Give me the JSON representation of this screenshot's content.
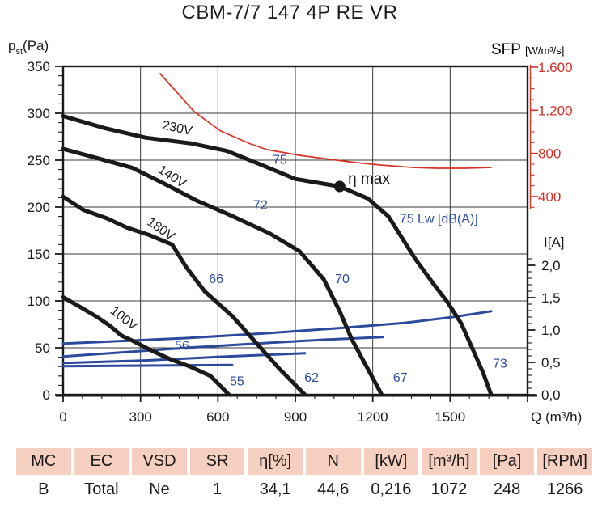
{
  "title": "CBM-7/7 147 4P RE VR",
  "axes": {
    "pressure": {
      "sym": "p",
      "sub": "st",
      "unit": "(Pa)",
      "ticks": [
        "350",
        "300",
        "250",
        "200",
        "150",
        "100",
        "50",
        "0"
      ]
    },
    "flow": {
      "label": "Q (m³/h)",
      "ticks": [
        "0",
        "300",
        "600",
        "900",
        "1200",
        "1500"
      ]
    },
    "sfp": {
      "title": "SFP",
      "unit": "[W/m³/s]",
      "ticks": [
        "1.600",
        "1.200",
        "800",
        "400"
      ]
    },
    "current": {
      "title": "I[A]",
      "ticks": [
        "2,0",
        "1,5",
        "1,0",
        "0,5",
        "0,0"
      ]
    }
  },
  "chart_data": {
    "type": "line",
    "title": "CBM-7/7 147 4P RE VR",
    "x_axis": {
      "label": "Q (m³/h)",
      "range": [
        0,
        1800
      ],
      "ticks": [
        0,
        300,
        600,
        900,
        1200,
        1500
      ],
      "minor_step": 75
    },
    "y_axis_pressure": {
      "label": "pst (Pa)",
      "range": [
        0,
        350
      ],
      "tick_step": 50,
      "minor_step": 10
    },
    "y_axis_sfp": {
      "label": "SFP [W/m³/s]",
      "ticks_shown": [
        400,
        800,
        1200,
        1600
      ],
      "minor_step": 100
    },
    "y_axis_current": {
      "label": "I [A]",
      "ticks_shown": [
        0.0,
        0.5,
        1.0,
        1.5,
        2.0
      ],
      "minor_step": 0.1
    },
    "grid": true,
    "pressure_curves": [
      {
        "name": "230V",
        "points": [
          [
            0,
            297
          ],
          [
            163,
            284
          ],
          [
            320,
            274
          ],
          [
            492,
            268
          ],
          [
            633,
            260
          ],
          [
            759,
            246
          ],
          [
            900,
            230
          ],
          [
            1072,
            222
          ],
          [
            1182,
            209
          ],
          [
            1261,
            190
          ],
          [
            1364,
            145
          ],
          [
            1433,
            119
          ],
          [
            1489,
            99
          ],
          [
            1543,
            76
          ],
          [
            1590,
            47
          ],
          [
            1627,
            24
          ],
          [
            1659,
            0
          ]
        ]
      },
      {
        "name": "140V",
        "points": [
          [
            0,
            262
          ],
          [
            147,
            251
          ],
          [
            267,
            242
          ],
          [
            392,
            225
          ],
          [
            517,
            207
          ],
          [
            643,
            192
          ],
          [
            800,
            172
          ],
          [
            916,
            153
          ],
          [
            1010,
            123
          ],
          [
            1072,
            89
          ],
          [
            1119,
            59
          ],
          [
            1176,
            30
          ],
          [
            1235,
            0
          ]
        ]
      },
      {
        "name": "180V",
        "points": [
          [
            0,
            211
          ],
          [
            78,
            197
          ],
          [
            169,
            188
          ],
          [
            248,
            178
          ],
          [
            336,
            170
          ],
          [
            423,
            160
          ],
          [
            477,
            136
          ],
          [
            549,
            110
          ],
          [
            655,
            84
          ],
          [
            743,
            57
          ],
          [
            837,
            28
          ],
          [
            937,
            0
          ]
        ]
      },
      {
        "name": "100V",
        "points": [
          [
            0,
            104
          ],
          [
            69,
            93
          ],
          [
            125,
            84
          ],
          [
            179,
            74
          ],
          [
            226,
            63
          ],
          [
            273,
            57
          ],
          [
            336,
            48
          ],
          [
            414,
            38
          ],
          [
            492,
            30
          ],
          [
            571,
            20
          ],
          [
            643,
            0
          ]
        ]
      }
    ],
    "sfp_curve": {
      "name": "SFP",
      "points": [
        [
          376,
          1540
        ],
        [
          508,
          1187
        ],
        [
          611,
          1007
        ],
        [
          727,
          887
        ],
        [
          790,
          835
        ],
        [
          916,
          782
        ],
        [
          1010,
          752
        ],
        [
          1135,
          715
        ],
        [
          1229,
          692
        ],
        [
          1354,
          670
        ],
        [
          1448,
          662
        ],
        [
          1558,
          662
        ],
        [
          1659,
          670
        ]
      ]
    },
    "current_curves": [
      {
        "name": "I-230V",
        "points": [
          [
            0,
            0.79
          ],
          [
            477,
            0.875
          ],
          [
            790,
            0.95
          ],
          [
            1072,
            1.03
          ],
          [
            1323,
            1.11
          ],
          [
            1511,
            1.2
          ],
          [
            1659,
            1.29
          ]
        ]
      },
      {
        "name": "I-140V",
        "points": [
          [
            0,
            0.59
          ],
          [
            477,
            0.725
          ],
          [
            790,
            0.8
          ],
          [
            1010,
            0.85
          ],
          [
            1238,
            0.89
          ]
        ]
      },
      {
        "name": "I-180V",
        "points": [
          [
            0,
            0.49
          ],
          [
            320,
            0.53
          ],
          [
            633,
            0.59
          ],
          [
            937,
            0.64
          ]
        ]
      },
      {
        "name": "I-100V",
        "points": [
          [
            0,
            0.44
          ],
          [
            320,
            0.45
          ],
          [
            655,
            0.46
          ]
        ]
      }
    ],
    "noise_labels": [
      {
        "text": "75",
        "q": 840,
        "pa": 246
      },
      {
        "text": "72",
        "q": 765,
        "pa": 198
      },
      {
        "text": "66",
        "q": 593,
        "pa": 119
      },
      {
        "text": "70",
        "q": 1082,
        "pa": 119
      },
      {
        "text": "56",
        "q": 461,
        "pa": 48
      },
      {
        "text": "55",
        "q": 674,
        "pa": 10
      },
      {
        "text": "62",
        "q": 963,
        "pa": 14
      },
      {
        "text": "67",
        "q": 1307,
        "pa": 14
      },
      {
        "text": "73",
        "q": 1693,
        "pa": 29
      },
      {
        "text": "75 Lw [dB(A)]",
        "q": 1304,
        "pa": 183,
        "anchor": "start"
      }
    ],
    "voltage_labels": [
      {
        "text": "230V",
        "q": 439,
        "pa": 280,
        "rot": 12
      },
      {
        "text": "140V",
        "q": 414,
        "pa": 229,
        "rot": 33
      },
      {
        "text": "180V",
        "q": 370,
        "pa": 173,
        "rot": 35
      },
      {
        "text": "100V",
        "q": 226,
        "pa": 78,
        "rot": 38
      }
    ],
    "eta_max": {
      "label": "η max",
      "dot": {
        "q": 1072,
        "pa": 222
      },
      "text_pos": {
        "q": 1104,
        "pa": 225
      }
    }
  },
  "table": {
    "headers": [
      "MC",
      "EC",
      "VSD",
      "SR",
      "η[%]",
      "N",
      "[kW]",
      "[m³/h]",
      "[Pa]",
      "[RPM]"
    ],
    "values": [
      "B",
      "Total",
      "Ne",
      "1",
      "34,1",
      "44,6",
      "0,216",
      "1072",
      "248",
      "1266"
    ]
  },
  "colors": {
    "curve_black": "#1a1a1a",
    "label_blue": "#2b4a9c",
    "sfp_red": "#d93025",
    "grid": "#3a3a3a",
    "table_header_bg": "#f5cfc0"
  }
}
